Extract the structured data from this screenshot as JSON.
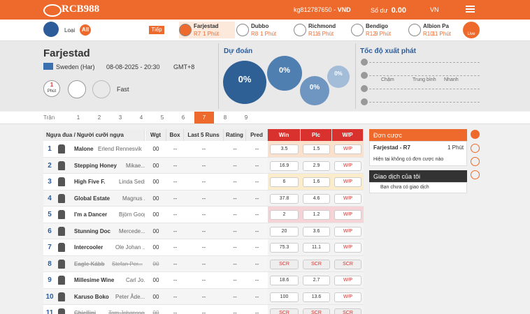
{
  "header": {
    "logo": "RCB988",
    "user": "kg812787650",
    "currency": "VND",
    "balance_label": "Số dư",
    "balance": "0.00",
    "language": "VN"
  },
  "nav": {
    "type_label": "Loại",
    "all": "All",
    "next": "Tiếp",
    "live": "Live",
    "races": [
      {
        "venue": "Farjestad",
        "race": "R7",
        "time": "1 Phút"
      },
      {
        "venue": "Dubbo",
        "race": "R8",
        "time": "1 Phút"
      },
      {
        "venue": "Richmond",
        "race": "R11",
        "time": "6 Phút"
      },
      {
        "venue": "Bendigo",
        "race": "R12",
        "time": "9 Phút"
      },
      {
        "venue": "Albion Pa",
        "race": "R10",
        "time": "11 Phút"
      }
    ]
  },
  "race_info": {
    "venue": "Farjestad",
    "country": "Sweden (Har)",
    "datetime": "08-08-2025 - 20:30",
    "timezone": "GMT+8",
    "countdown": "1",
    "countdown_unit": "Phút",
    "track": "Fast"
  },
  "prediction": {
    "title": "Dự đoán",
    "bubbles": [
      "0%",
      "0%",
      "0%",
      "0%"
    ]
  },
  "start_speed": {
    "title": "Tốc độ xuất phát",
    "labels": [
      "Chậm",
      "Trung bình",
      "Nhanh"
    ]
  },
  "race_tabs": {
    "label": "Trận",
    "races": [
      "1",
      "2",
      "3",
      "4",
      "5",
      "6",
      "7",
      "8",
      "9"
    ],
    "active": 6
  },
  "table": {
    "columns": [
      "Ngựa đua / Người cưỡi ngựa",
      "Wgt",
      "Box",
      "Last 5 Runs",
      "Rating",
      "Pred",
      "Win",
      "Plc",
      "W/P"
    ],
    "rows": [
      {
        "no": "1",
        "horse": "Malone",
        "jockey": "Erlend Rennesvik",
        "wgt": "00",
        "box": "--",
        "last5": "--",
        "rating": "--",
        "pred": "--",
        "win": "3.5",
        "plc": "1.5",
        "wp": "W/P",
        "highlight": "#fbe0cc"
      },
      {
        "no": "2",
        "horse": "Stepping Honey",
        "jockey": "Mikae...",
        "wgt": "00",
        "box": "--",
        "last5": "--",
        "rating": "--",
        "pred": "--",
        "win": "16.9",
        "plc": "2.9",
        "wp": "W/P"
      },
      {
        "no": "3",
        "horse": "High Five F.",
        "jockey": "Linda Seds...",
        "wgt": "00",
        "box": "--",
        "last5": "--",
        "rating": "--",
        "pred": "--",
        "win": "6",
        "plc": "1.6",
        "wp": "W/P",
        "highlight": "#fbeccb"
      },
      {
        "no": "4",
        "horse": "Global Estate",
        "jockey": "Magnus ...",
        "wgt": "00",
        "box": "--",
        "last5": "--",
        "rating": "--",
        "pred": "--",
        "win": "37.8",
        "plc": "4.6",
        "wp": "W/P"
      },
      {
        "no": "5",
        "horse": "I'm a Dancer",
        "jockey": "Björn Goop",
        "wgt": "00",
        "box": "--",
        "last5": "--",
        "rating": "--",
        "pred": "--",
        "win": "2",
        "plc": "1.2",
        "wp": "W/P",
        "highlight": "#f5d3d6"
      },
      {
        "no": "6",
        "horse": "Stunning Doc",
        "jockey": "Mercede...",
        "wgt": "00",
        "box": "--",
        "last5": "--",
        "rating": "--",
        "pred": "--",
        "win": "20",
        "plc": "3.6",
        "wp": "W/P"
      },
      {
        "no": "7",
        "horse": "Intercooler",
        "jockey": "Ole Johan ...",
        "wgt": "00",
        "box": "--",
        "last5": "--",
        "rating": "--",
        "pred": "--",
        "win": "75.3",
        "plc": "11.1",
        "wp": "W/P"
      },
      {
        "no": "8",
        "horse": "Eagle Kább",
        "jockey": "Stefan Per...",
        "wgt": "00",
        "box": "--",
        "last5": "--",
        "rating": "--",
        "pred": "--",
        "win": "SCR",
        "plc": "SCR",
        "wp": "SCR",
        "scratched": true
      },
      {
        "no": "9",
        "horse": "Millesime Wine",
        "jockey": "Carl Jo...",
        "wgt": "00",
        "box": "--",
        "last5": "--",
        "rating": "--",
        "pred": "--",
        "win": "18.6",
        "plc": "2.7",
        "wp": "W/P"
      },
      {
        "no": "10",
        "horse": "Karuso Boko",
        "jockey": "Peter Åde...",
        "wgt": "00",
        "box": "--",
        "last5": "--",
        "rating": "--",
        "pred": "--",
        "win": "100",
        "plc": "13.6",
        "wp": "W/P"
      },
      {
        "no": "11",
        "horse": "Chiellini",
        "jockey": "Tom Johansson",
        "wgt": "00",
        "box": "--",
        "last5": "--",
        "rating": "--",
        "pred": "--",
        "win": "SCR",
        "plc": "SCR",
        "wp": "SCR",
        "scratched": true
      }
    ]
  },
  "bet_slip": {
    "title": "Đơn cược",
    "race": "Farjestad - R7",
    "time": "1 Phút",
    "empty": "Hiện tại không có đơn cược nào"
  },
  "transactions": {
    "title": "Giao dịch của tôi",
    "empty": "Bạn chưa có giao dịch"
  }
}
